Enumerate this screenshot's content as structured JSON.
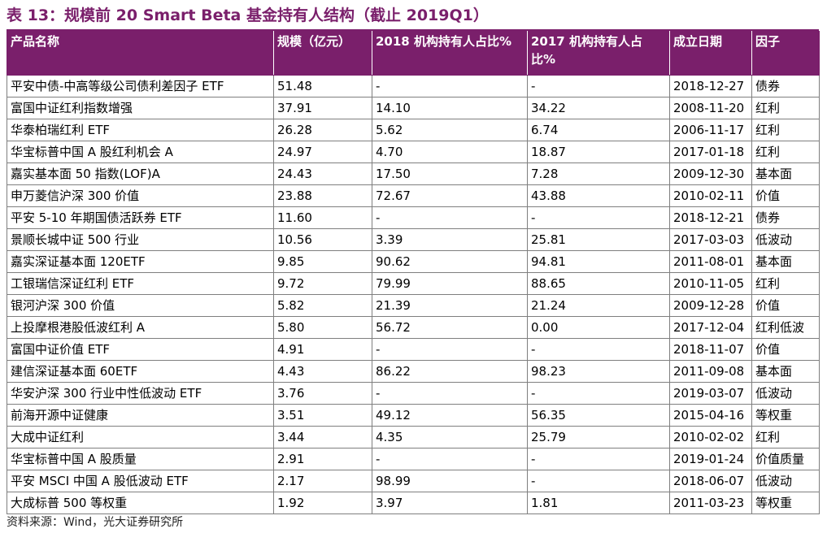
{
  "title": "表 13：规模前 20 Smart Beta 基金持有人结构（截止 2019Q1）",
  "headers": [
    "产品名称",
    "规模（亿元）",
    "2018 机构持有人占比%",
    "2017 机构持有人占比%",
    "成立日期",
    "因子"
  ],
  "rows": [
    [
      "平安中债-中高等级公司债利差因子 ETF",
      "51.48",
      "-",
      "-",
      "2018-12-27",
      "债券"
    ],
    [
      "富国中证红利指数增强",
      "37.91",
      "14.10",
      "34.22",
      "2008-11-20",
      "红利"
    ],
    [
      "华泰柏瑞红利 ETF",
      "26.28",
      "5.62",
      "6.74",
      "2006-11-17",
      "红利"
    ],
    [
      "华宝标普中国 A 股红利机会 A",
      "24.97",
      "4.70",
      "18.87",
      "2017-01-18",
      "红利"
    ],
    [
      "嘉实基本面 50 指数(LOF)A",
      "24.43",
      "17.50",
      "7.28",
      "2009-12-30",
      "基本面"
    ],
    [
      "申万菱信沪深 300 价值",
      "23.88",
      "72.67",
      "43.88",
      "2010-02-11",
      "价值"
    ],
    [
      "平安 5-10 年期国债活跃券 ETF",
      "11.60",
      "-",
      "-",
      "2018-12-21",
      "债券"
    ],
    [
      "景顺长城中证 500 行业",
      "10.56",
      "3.39",
      "25.81",
      "2017-03-03",
      "低波动"
    ],
    [
      "嘉实深证基本面 120ETF",
      "9.85",
      "90.62",
      "94.81",
      "2011-08-01",
      "基本面"
    ],
    [
      "工银瑞信深证红利 ETF",
      "9.72",
      "79.99",
      "88.65",
      "2010-11-05",
      "红利"
    ],
    [
      "银河沪深 300 价值",
      "5.82",
      "21.39",
      "21.24",
      "2009-12-28",
      "价值"
    ],
    [
      "上投摩根港股低波红利 A",
      "5.80",
      "56.72",
      "0.00",
      "2017-12-04",
      "红利低波"
    ],
    [
      "富国中证价值 ETF",
      "4.91",
      "-",
      "-",
      "2018-11-07",
      "价值"
    ],
    [
      "建信深证基本面 60ETF",
      "4.43",
      "86.22",
      "98.23",
      "2011-09-08",
      "基本面"
    ],
    [
      "华安沪深 300 行业中性低波动 ETF",
      "3.76",
      "-",
      "-",
      "2019-03-07",
      "低波动"
    ],
    [
      "前海开源中证健康",
      "3.51",
      "49.12",
      "56.35",
      "2015-04-16",
      "等权重"
    ],
    [
      "大成中证红利",
      "3.44",
      "4.35",
      "25.79",
      "2010-02-02",
      "红利"
    ],
    [
      "华宝标普中国 A 股质量",
      "2.91",
      "-",
      "-",
      "2019-01-24",
      "价值质量"
    ],
    [
      "平安 MSCI 中国 A 股低波动 ETF",
      "2.17",
      "98.99",
      "-",
      "2018-06-07",
      "低波动"
    ],
    [
      "大成标普 500 等权重",
      "1.92",
      "3.97",
      "1.81",
      "2011-03-23",
      "等权重"
    ]
  ],
  "source": "资料来源：Wind，光大证券研究所"
}
